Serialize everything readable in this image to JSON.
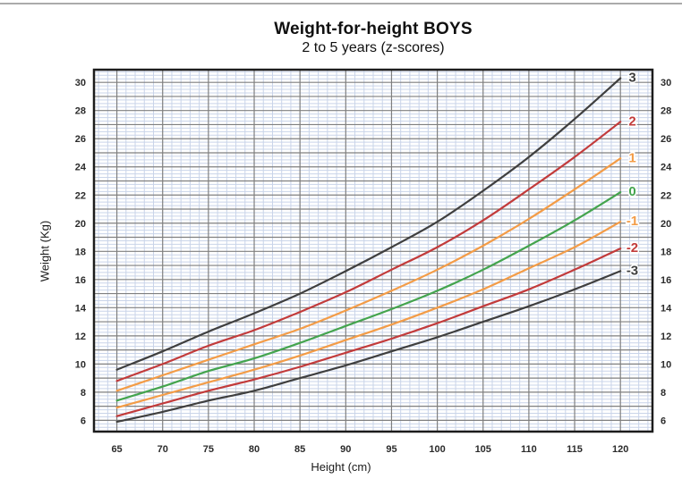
{
  "page": {
    "background": "#ffffff",
    "top_divider_color": "#ababab"
  },
  "chart_data": {
    "type": "line",
    "title": "Weight-for-height BOYS",
    "subtitle": "2 to 5 years (z-scores)",
    "xlabel": "Height (cm)",
    "ylabel": "Weight (Kg)",
    "xlim": [
      62.5,
      123.5
    ],
    "ylim": [
      5.2,
      30.9
    ],
    "x_ticks": [
      65,
      70,
      75,
      80,
      85,
      90,
      95,
      100,
      105,
      110,
      115,
      120
    ],
    "y_ticks": [
      6,
      8,
      10,
      12,
      14,
      16,
      18,
      20,
      22,
      24,
      26,
      28,
      30
    ],
    "y_tick_sides": [
      "left",
      "right"
    ],
    "x_major_step": 5,
    "x_minor_step": 1,
    "y_major_step": 1,
    "y_minor_step": 0.25,
    "grid": {
      "minor_color": "#c9d4e9",
      "major_color": "#7f7f7f",
      "border_color": "#1c1c1c"
    },
    "tick_label_color": "#2b2b2b",
    "x": [
      65,
      70,
      75,
      80,
      85,
      90,
      95,
      100,
      105,
      110,
      115,
      120
    ],
    "series": [
      {
        "name": "3",
        "zscore": 3,
        "color": "#3f3f3f",
        "values": [
          9.6,
          10.9,
          12.3,
          13.6,
          15.0,
          16.6,
          18.3,
          20.1,
          22.3,
          24.7,
          27.4,
          30.3
        ]
      },
      {
        "name": "2",
        "zscore": 2,
        "color": "#c23b3b",
        "values": [
          8.8,
          10.0,
          11.3,
          12.4,
          13.7,
          15.1,
          16.7,
          18.3,
          20.2,
          22.4,
          24.7,
          27.2
        ]
      },
      {
        "name": "1",
        "zscore": 1,
        "color": "#f39c47",
        "values": [
          8.1,
          9.2,
          10.3,
          11.4,
          12.5,
          13.8,
          15.2,
          16.7,
          18.4,
          20.3,
          22.4,
          24.6
        ]
      },
      {
        "name": "0",
        "zscore": 0,
        "color": "#44a44e",
        "values": [
          7.4,
          8.4,
          9.5,
          10.4,
          11.5,
          12.7,
          13.9,
          15.2,
          16.7,
          18.4,
          20.2,
          22.2
        ]
      },
      {
        "name": "-1",
        "zscore": -1,
        "color": "#f39c47",
        "values": [
          6.9,
          7.8,
          8.7,
          9.6,
          10.6,
          11.7,
          12.8,
          14.0,
          15.3,
          16.8,
          18.3,
          20.1
        ]
      },
      {
        "name": "-2",
        "zscore": -2,
        "color": "#c23b3b",
        "values": [
          6.3,
          7.2,
          8.1,
          8.9,
          9.8,
          10.8,
          11.8,
          12.9,
          14.1,
          15.3,
          16.7,
          18.2
        ]
      },
      {
        "name": "-3",
        "zscore": -3,
        "color": "#3f3f3f",
        "values": [
          5.9,
          6.6,
          7.4,
          8.1,
          9.0,
          9.9,
          10.9,
          11.9,
          13.0,
          14.1,
          15.3,
          16.6
        ]
      }
    ]
  }
}
